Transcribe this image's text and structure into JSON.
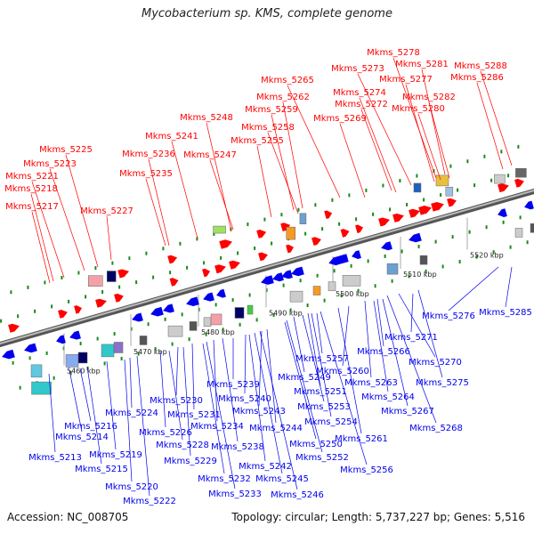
{
  "title": "Mycobacterium sp. KMS, complete genome",
  "footer": {
    "accession": "Accession: NC_008705",
    "summary": "Topology: circular; Length: 5,737,227 bp; Genes: 5,516"
  },
  "colors": {
    "forward": "#ff0000",
    "reverse": "#0000ee",
    "backbone": "#888888",
    "tick_dots": "#1a8a1a"
  },
  "scale_labels": [
    "5460 kbp",
    "5470 kbp",
    "5480 kbp",
    "5490 kbp",
    "5500 kbp",
    "5510 kbp",
    "5520 kbp"
  ],
  "forward_genes": [
    "Mkms_5278",
    "Mkms_5281",
    "Mkms_5288",
    "Mkms_5273",
    "Mkms_5286",
    "Mkms_5265",
    "Mkms_5277",
    "Mkms_5274",
    "Mkms_5262",
    "Mkms_5282",
    "Mkms_5272",
    "Mkms_5259",
    "Mkms_5280",
    "Mkms_5269",
    "Mkms_5248",
    "Mkms_5258",
    "Mkms_5255",
    "Mkms_5241",
    "Mkms_5236",
    "Mkms_5247",
    "Mkms_5225",
    "Mkms_5235",
    "Mkms_5223",
    "Mkms_5221",
    "Mkms_5218",
    "Mkms_5217",
    "Mkms_5227"
  ],
  "reverse_genes": [
    "Mkms_5276",
    "Mkms_5285",
    "Mkms_5271",
    "Mkms_5257",
    "Mkms_5266",
    "Mkms_5270",
    "Mkms_5260",
    "Mkms_5249",
    "Mkms_5263",
    "Mkms_5239",
    "Mkms_5251",
    "Mkms_5275",
    "Mkms_5230",
    "Mkms_5240",
    "Mkms_5264",
    "Mkms_5253",
    "Mkms_5231",
    "Mkms_5243",
    "Mkms_5267",
    "Mkms_5224",
    "Mkms_5254",
    "Mkms_5234",
    "Mkms_5226",
    "Mkms_5244",
    "Mkms_5216",
    "Mkms_5268",
    "Mkms_5261",
    "Mkms_5214",
    "Mkms_5228",
    "Mkms_5238",
    "Mkms_5250",
    "Mkms_5219",
    "Mkms_5229",
    "Mkms_5213",
    "Mkms_5252",
    "Mkms_5242",
    "Mkms_5215",
    "Mkms_5256",
    "Mkms_5232",
    "Mkms_5245",
    "Mkms_5220",
    "Mkms_5233",
    "Mkms_5246",
    "Mkms_5222"
  ]
}
